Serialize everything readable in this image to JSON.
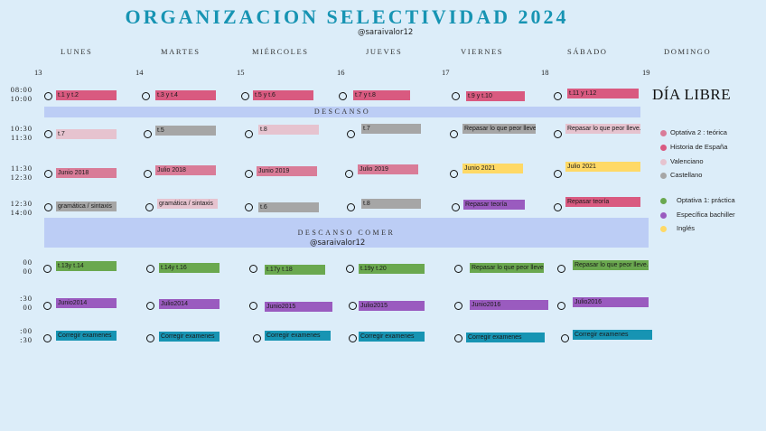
{
  "title": "ORGANIZACION SELECTIVIDAD 2024",
  "handle": "@saraivalor12",
  "handle2": "@saraivalor12",
  "days": [
    "LUNES",
    "MARTES",
    "MIÉRCOLES",
    "JUEVES",
    "VIERNES",
    "SÁBADO",
    "DOMINGO"
  ],
  "dates": [
    "13",
    "14",
    "15",
    "16",
    "17",
    "18",
    "19"
  ],
  "times": [
    "08:00\n10:00",
    "10:30\n11:30",
    "11:30\n12:30",
    "12:30\n14:00",
    "00\n00",
    ":30\n00",
    ":00\n:30"
  ],
  "descanso": "DESCANSO",
  "descanso_comer": "DESCANSO COMER",
  "dia_libre": "DÍA LIBRE",
  "colors": {
    "historia": "#d95a80",
    "teorica": "#d97c98",
    "valenciano": "#e6c3cf",
    "castellano": "#a6a6a6",
    "practica": "#6aa84f",
    "especifica": "#9a5bbf",
    "ingles": "#ffd966",
    "corregir": "#1794b3"
  },
  "tasks": [
    [
      "t.1 y t.2",
      "t.3 y t.4",
      "t.5 y t.6",
      "t.7 y t.8",
      "t.9 y t.10",
      "t.11 y t.12"
    ],
    [
      "t.7",
      "t.5",
      "t.8",
      "t.7",
      "Repasar lo que peor lleve.",
      "Repasar lo que peor lleve."
    ],
    [
      "Junio 2018",
      "Julio 2018",
      "Junio 2019",
      "Julio 2019",
      "Junio 2021",
      "Julio 2021"
    ],
    [
      "gramática / sintaxis",
      "gramática / sintaxis",
      "t.6",
      "t.8",
      "Repasar teoría",
      "Repasar teoría"
    ],
    [
      "t.13y t.14",
      "t.14y t.16",
      "t.17y t.18",
      "t.19y t.20",
      "Repasar lo que peor lleve.",
      "Repasar lo que peor lleve."
    ],
    [
      "Junio2014",
      "Julio2014",
      "Junio2015",
      "Julio2015",
      "Junio2016",
      "Julio2016"
    ],
    [
      "Corregir examenes",
      "Corregir examenes",
      "Corregir examenes",
      "Corregir examenes",
      "Corregir examenes",
      "Corregir examenes"
    ]
  ],
  "legend": [
    {
      "label": "Optativa 2 : teórica",
      "color": "#d97c98"
    },
    {
      "label": "Historia de España",
      "color": "#d95a80"
    },
    {
      "label": "Valenciano",
      "color": "#e6c3cf"
    },
    {
      "label": "Castellano",
      "color": "#a6a6a6"
    },
    {
      "label": "Optativa 1: práctica",
      "color": "#6aa84f"
    },
    {
      "label": "Específica bachiller",
      "color": "#9a5bbf"
    },
    {
      "label": "Inglés",
      "color": "#ffd966"
    }
  ]
}
